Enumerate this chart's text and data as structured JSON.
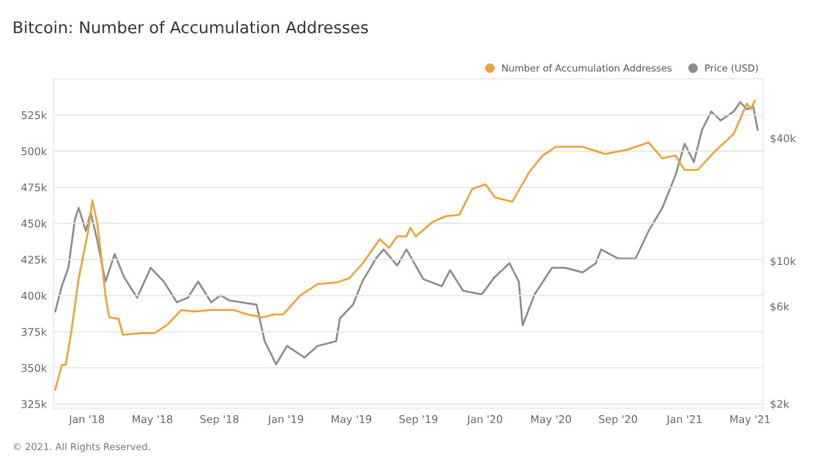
{
  "chart_data": {
    "type": "line",
    "title": "Bitcoin: Number of Accumulation Addresses",
    "annotations": [
      "© 2021. All Rights Reserved."
    ],
    "xlim": [
      "2017-11-01",
      "2021-05-25"
    ],
    "xticks": [
      {
        "value": "2018-01-01",
        "label": "Jan '18"
      },
      {
        "value": "2018-05-01",
        "label": "May '18"
      },
      {
        "value": "2018-09-01",
        "label": "Sep '18"
      },
      {
        "value": "2019-01-01",
        "label": "Jan '19"
      },
      {
        "value": "2019-05-01",
        "label": "May '19"
      },
      {
        "value": "2019-09-01",
        "label": "Sep '19"
      },
      {
        "value": "2020-01-01",
        "label": "Jan '20"
      },
      {
        "value": "2020-05-01",
        "label": "May '20"
      },
      {
        "value": "2020-09-01",
        "label": "Sep '20"
      },
      {
        "value": "2021-01-01",
        "label": "Jan '21"
      },
      {
        "value": "2021-05-01",
        "label": "May '21"
      }
    ],
    "ylim": [
      322000,
      550000
    ],
    "yticks": [
      {
        "value": 325000,
        "label": "325k"
      },
      {
        "value": 350000,
        "label": "350k"
      },
      {
        "value": 375000,
        "label": "375k"
      },
      {
        "value": 400000,
        "label": "400k"
      },
      {
        "value": 425000,
        "label": "425k"
      },
      {
        "value": 450000,
        "label": "450k"
      },
      {
        "value": 475000,
        "label": "475k"
      },
      {
        "value": 500000,
        "label": "500k"
      },
      {
        "value": 525000,
        "label": "525k"
      }
    ],
    "log": "y2",
    "y2lim": [
      1900,
      78000
    ],
    "y2ticks": [
      {
        "value": 2000,
        "label": "$2k"
      },
      {
        "value": 6000,
        "label": "$6k"
      },
      {
        "value": 10000,
        "label": "$10k"
      },
      {
        "value": 40000,
        "label": "$40k"
      }
    ],
    "grid": "y",
    "legend": "top right",
    "marker": "none",
    "line_style": "solid",
    "series": [
      {
        "name": "Number of Accumulation Addresses",
        "color": "#eba33c",
        "x": [
          "2017-11-04",
          "2017-11-16",
          "2017-11-23",
          "2017-12-03",
          "2017-12-17",
          "2017-12-27",
          "2018-01-03",
          "2018-01-11",
          "2018-01-20",
          "2018-01-28",
          "2018-02-04",
          "2018-02-11",
          "2018-02-28",
          "2018-03-08",
          "2018-04-11",
          "2018-05-05",
          "2018-05-29",
          "2018-06-23",
          "2018-07-17",
          "2018-08-17",
          "2018-09-28",
          "2018-10-22",
          "2018-11-20",
          "2018-12-10",
          "2018-12-27",
          "2019-01-27",
          "2019-02-28",
          "2019-04-03",
          "2019-04-27",
          "2019-05-21",
          "2019-06-22",
          "2019-07-09",
          "2019-07-24",
          "2019-08-10",
          "2019-08-17",
          "2019-08-27",
          "2019-09-27",
          "2019-10-22",
          "2019-11-15",
          "2019-12-09",
          "2020-01-02",
          "2020-01-19",
          "2020-02-20",
          "2020-03-23",
          "2020-04-16",
          "2020-05-10",
          "2020-06-28",
          "2020-08-08",
          "2020-09-18",
          "2020-10-27",
          "2020-11-21",
          "2020-12-15",
          "2021-01-01",
          "2021-01-25",
          "2021-02-26",
          "2021-04-01",
          "2021-04-15",
          "2021-04-25",
          "2021-05-02",
          "2021-05-10"
        ],
        "values": [
          335000,
          352000,
          352000,
          374000,
          412000,
          431000,
          444000,
          466000,
          450000,
          425000,
          400000,
          385000,
          384000,
          373000,
          374000,
          374000,
          380000,
          390000,
          389000,
          390000,
          390000,
          387000,
          385000,
          387000,
          387000,
          400000,
          408000,
          409000,
          412000,
          422000,
          439000,
          433000,
          441000,
          441000,
          447000,
          441000,
          451000,
          455000,
          456000,
          474000,
          477000,
          468000,
          465000,
          486000,
          497000,
          503000,
          503000,
          498000,
          501000,
          506000,
          495000,
          497000,
          487000,
          487000,
          500000,
          512000,
          524000,
          533000,
          529000,
          535000
        ]
      },
      {
        "name": "Price (USD)",
        "color": "#8c8c8c",
        "axis": "y2",
        "x": [
          "2017-11-04",
          "2017-11-16",
          "2017-11-28",
          "2017-12-10",
          "2017-12-17",
          "2017-12-30",
          "2018-01-08",
          "2018-01-20",
          "2018-02-04",
          "2018-02-21",
          "2018-03-10",
          "2018-04-03",
          "2018-04-28",
          "2018-05-22",
          "2018-06-15",
          "2018-07-05",
          "2018-07-24",
          "2018-08-17",
          "2018-09-03",
          "2018-09-20",
          "2018-11-08",
          "2018-11-23",
          "2018-12-14",
          "2019-01-03",
          "2019-02-04",
          "2019-02-28",
          "2019-04-03",
          "2019-04-10",
          "2019-05-04",
          "2019-05-21",
          "2019-06-15",
          "2019-06-29",
          "2019-07-24",
          "2019-08-10",
          "2019-09-10",
          "2019-10-14",
          "2019-10-29",
          "2019-11-22",
          "2019-12-26",
          "2020-01-19",
          "2020-02-15",
          "2020-03-03",
          "2020-03-10",
          "2020-04-01",
          "2020-05-03",
          "2020-05-27",
          "2020-06-28",
          "2020-07-22",
          "2020-08-01",
          "2020-09-01",
          "2020-10-03",
          "2020-10-27",
          "2020-11-21",
          "2020-12-15",
          "2021-01-01",
          "2021-01-18",
          "2021-02-02",
          "2021-02-19",
          "2021-03-08",
          "2021-04-01",
          "2021-04-13",
          "2021-04-25",
          "2021-05-07",
          "2021-05-15"
        ],
        "values": [
          5660,
          7530,
          9270,
          15960,
          18200,
          14040,
          17270,
          12650,
          7930,
          10820,
          8360,
          6610,
          9270,
          7930,
          6280,
          6610,
          7930,
          6280,
          6790,
          6400,
          6120,
          4050,
          3120,
          3840,
          3370,
          3840,
          4050,
          5240,
          6120,
          7930,
          10280,
          11400,
          9510,
          11400,
          8150,
          7530,
          9020,
          7150,
          6870,
          8360,
          9750,
          7930,
          4840,
          6870,
          9270,
          9270,
          8800,
          9750,
          11400,
          10280,
          10280,
          14040,
          18200,
          26170,
          37540,
          30550,
          43900,
          54000,
          48800,
          54000,
          60000,
          55400,
          57000,
          43900
        ]
      }
    ]
  }
}
